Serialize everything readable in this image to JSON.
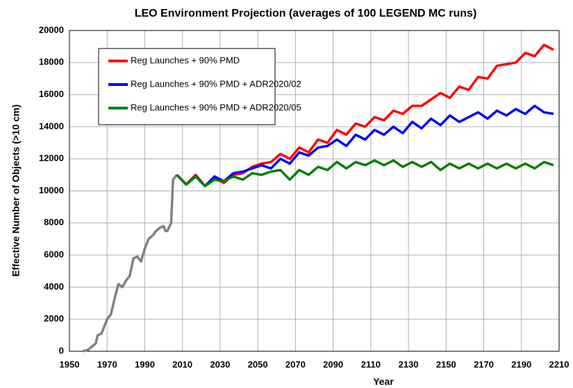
{
  "chart_data": {
    "type": "line",
    "title": "LEO Environment Projection (averages of 100 LEGEND MC runs)",
    "xlabel": "Year",
    "ylabel": "Effective Number of Objects (>10 cm)",
    "xlim": [
      1950,
      2210
    ],
    "xticks": [
      1950,
      1970,
      1990,
      2010,
      2030,
      2050,
      2070,
      2090,
      2110,
      2130,
      2150,
      2170,
      2190,
      2210
    ],
    "ylim": [
      0,
      20000
    ],
    "yticks": [
      0,
      2000,
      4000,
      6000,
      8000,
      10000,
      12000,
      14000,
      16000,
      18000,
      20000
    ],
    "grid": true,
    "legend": "upper left",
    "series": [
      {
        "color": "#808080",
        "x": [
          1957,
          1960,
          1962,
          1964,
          1965,
          1967,
          1969,
          1970,
          1972,
          1974,
          1976,
          1978,
          1980,
          1982,
          1984,
          1986,
          1988,
          1990,
          1992,
          1994,
          1996,
          1998,
          2000,
          2001,
          2002,
          2004,
          2005,
          2007
        ],
        "values": [
          0,
          100,
          300,
          500,
          1000,
          1100,
          1700,
          2000,
          2300,
          3300,
          4200,
          4000,
          4400,
          4700,
          5800,
          5900,
          5600,
          6400,
          7000,
          7200,
          7500,
          7700,
          7800,
          7500,
          7500,
          8000,
          10700,
          11000
        ]
      },
      {
        "name": "Reg Launches + 90% PMD",
        "color": "#ff0000",
        "x": [
          2007,
          2012,
          2017,
          2022,
          2027,
          2032,
          2037,
          2042,
          2047,
          2052,
          2057,
          2062,
          2067,
          2072,
          2077,
          2082,
          2087,
          2092,
          2097,
          2102,
          2107,
          2112,
          2117,
          2122,
          2127,
          2132,
          2137,
          2142,
          2147,
          2152,
          2157,
          2162,
          2167,
          2172,
          2177,
          2182,
          2187,
          2192,
          2197,
          2202,
          2207
        ],
        "values": [
          11000,
          10400,
          11000,
          10300,
          10800,
          10500,
          11000,
          11100,
          11500,
          11700,
          11800,
          12300,
          12000,
          12700,
          12400,
          13200,
          13000,
          13800,
          13500,
          14200,
          14000,
          14600,
          14400,
          15000,
          14800,
          15300,
          15300,
          15700,
          16100,
          15800,
          16500,
          16300,
          17100,
          17000,
          17800,
          17900,
          18000,
          18600,
          18400,
          19100,
          18800
        ]
      },
      {
        "name": "Reg Launches + 90% PMD + ADR2020/02",
        "color": "#0000ff",
        "x": [
          2007,
          2012,
          2017,
          2022,
          2027,
          2032,
          2037,
          2042,
          2047,
          2052,
          2057,
          2062,
          2067,
          2072,
          2077,
          2082,
          2087,
          2092,
          2097,
          2102,
          2107,
          2112,
          2117,
          2122,
          2127,
          2132,
          2137,
          2142,
          2147,
          2152,
          2157,
          2162,
          2167,
          2172,
          2177,
          2182,
          2187,
          2192,
          2197,
          2202,
          2207
        ],
        "values": [
          11000,
          10400,
          10900,
          10300,
          10900,
          10600,
          11100,
          11200,
          11400,
          11600,
          11400,
          12000,
          11700,
          12400,
          12200,
          12700,
          12800,
          13200,
          12800,
          13500,
          13200,
          13800,
          13500,
          14000,
          13600,
          14300,
          13900,
          14500,
          14100,
          14700,
          14300,
          14600,
          14900,
          14500,
          15000,
          14700,
          15100,
          14800,
          15300,
          14900,
          14800
        ]
      },
      {
        "name": "Reg Launches + 90% PMD + ADR2020/05",
        "color": "#008000",
        "x": [
          2007,
          2012,
          2017,
          2022,
          2027,
          2032,
          2037,
          2042,
          2047,
          2052,
          2057,
          2062,
          2067,
          2072,
          2077,
          2082,
          2087,
          2092,
          2097,
          2102,
          2107,
          2112,
          2117,
          2122,
          2127,
          2132,
          2137,
          2142,
          2147,
          2152,
          2157,
          2162,
          2167,
          2172,
          2177,
          2182,
          2187,
          2192,
          2197,
          2202,
          2207
        ],
        "values": [
          11000,
          10400,
          10900,
          10300,
          10700,
          10600,
          10900,
          10700,
          11100,
          11000,
          11200,
          11300,
          10700,
          11300,
          11000,
          11500,
          11300,
          11800,
          11400,
          11800,
          11600,
          11900,
          11600,
          11900,
          11500,
          11800,
          11500,
          11800,
          11300,
          11700,
          11400,
          11700,
          11400,
          11700,
          11400,
          11700,
          11400,
          11700,
          11400,
          11800,
          11600
        ]
      }
    ]
  }
}
